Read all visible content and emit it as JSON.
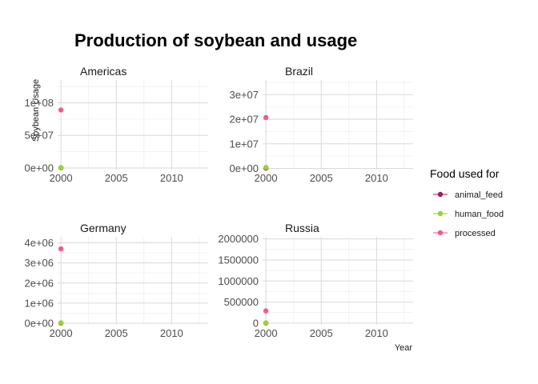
{
  "chart_data": {
    "type": "scatter",
    "title": "Production of soybean and usage",
    "xlabel": "Year",
    "ylabel": "Soybean Usage",
    "x_ticks": [
      2000,
      2005,
      2010
    ],
    "xlim": [
      1999.7,
      2013.3
    ],
    "grid": true,
    "legend": {
      "title": "Food used for",
      "position": "right",
      "entries": [
        {
          "name": "animal_feed",
          "color": "#A4195F"
        },
        {
          "name": "human_food",
          "color": "#95D62B"
        },
        {
          "name": "processed",
          "color": "#F25A86"
        }
      ]
    },
    "panels": [
      {
        "title": "Americas",
        "ylim": [
          -2500000,
          135000000
        ],
        "y_ticks": [
          0,
          50000000,
          100000000
        ],
        "y_tick_labels": [
          "0e+00",
          "5e+07",
          "1e+08"
        ],
        "series": [
          {
            "name": "animal_feed",
            "x": [
              2000
            ],
            "y": [
              300000
            ]
          },
          {
            "name": "human_food",
            "x": [
              2000
            ],
            "y": [
              700000
            ]
          },
          {
            "name": "processed",
            "x": [
              2000
            ],
            "y": [
              89000000
            ]
          }
        ]
      },
      {
        "title": "Brazil",
        "ylim": [
          -500000,
          36000000
        ],
        "y_ticks": [
          0,
          10000000,
          20000000,
          30000000
        ],
        "y_tick_labels": [
          "0e+00",
          "1e+07",
          "2e+07",
          "3e+07"
        ],
        "series": [
          {
            "name": "animal_feed",
            "x": [
              2000
            ],
            "y": [
              100000
            ]
          },
          {
            "name": "human_food",
            "x": [
              2000
            ],
            "y": [
              400000
            ]
          },
          {
            "name": "processed",
            "x": [
              2000
            ],
            "y": [
              20700000
            ]
          }
        ]
      },
      {
        "title": "Germany",
        "ylim": [
          -80000,
          4300000
        ],
        "y_ticks": [
          0,
          1000000,
          2000000,
          3000000,
          4000000
        ],
        "y_tick_labels": [
          "0e+00",
          "1e+06",
          "2e+06",
          "3e+06",
          "4e+06"
        ],
        "series": [
          {
            "name": "animal_feed",
            "x": [
              2000
            ],
            "y": [
              5000
            ]
          },
          {
            "name": "human_food",
            "x": [
              2000
            ],
            "y": [
              20000
            ]
          },
          {
            "name": "processed",
            "x": [
              2000
            ],
            "y": [
              3700000
            ]
          }
        ]
      },
      {
        "title": "Russia",
        "ylim": [
          -40000,
          2050000
        ],
        "y_ticks": [
          0,
          500000,
          1000000,
          1500000,
          2000000
        ],
        "y_tick_labels": [
          "0",
          "500000",
          "1000000",
          "1500000",
          "2000000"
        ],
        "series": [
          {
            "name": "animal_feed",
            "x": [
              2000
            ],
            "y": [
              2000
            ]
          },
          {
            "name": "human_food",
            "x": [
              2000
            ],
            "y": [
              8000
            ]
          },
          {
            "name": "processed",
            "x": [
              2000
            ],
            "y": [
              290000
            ]
          }
        ]
      }
    ]
  }
}
